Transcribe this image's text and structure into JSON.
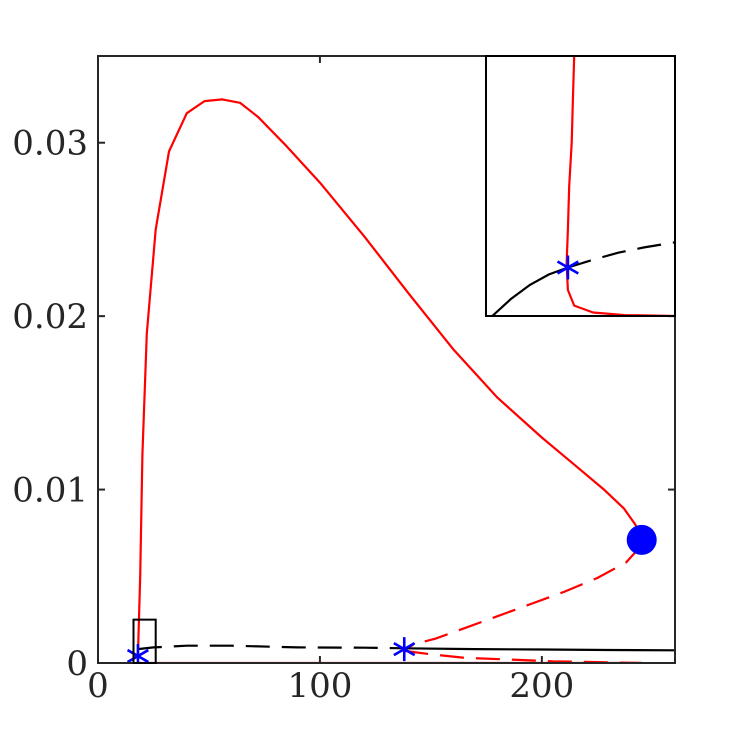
{
  "chart_data": {
    "type": "line",
    "title": "",
    "xlabel": "",
    "ylabel": "",
    "xlim": [
      0,
      260
    ],
    "ylim": [
      0,
      0.035
    ],
    "grid": false,
    "xticks": [
      0,
      100,
      200
    ],
    "xtick_labels": [
      "0",
      "100",
      "200"
    ],
    "yticks": [
      0,
      0.01,
      0.02,
      0.03
    ],
    "ytick_labels": [
      "0",
      "0.01",
      "0.02",
      "0.03"
    ],
    "colors": {
      "red": "#ff0000",
      "black": "#000000",
      "blue": "#0000ff"
    },
    "series": [
      {
        "color": "red",
        "style": "solid",
        "x": [
          18,
          19,
          20,
          22,
          26,
          32,
          40,
          48,
          56,
          64,
          72,
          85,
          100,
          120,
          140,
          160,
          180,
          200,
          215,
          228,
          237,
          242,
          245
        ],
        "y": [
          0.0004,
          0.005,
          0.012,
          0.019,
          0.025,
          0.0295,
          0.0317,
          0.0324,
          0.0325,
          0.0323,
          0.0315,
          0.0298,
          0.0277,
          0.0246,
          0.0213,
          0.0181,
          0.0153,
          0.013,
          0.0114,
          0.01,
          0.0089,
          0.008,
          0.0073
        ]
      },
      {
        "color": "red",
        "style": "dashed",
        "x": [
          245,
          238,
          225,
          210,
          195,
          180,
          165,
          152,
          143,
          138
        ],
        "y": [
          0.0068,
          0.0058,
          0.0049,
          0.0041,
          0.0034,
          0.0027,
          0.002,
          0.0014,
          0.0011,
          0.0008
        ]
      },
      {
        "color": "red",
        "style": "dashed",
        "x": [
          138,
          150,
          165,
          185,
          205,
          225,
          245
        ],
        "y": [
          0.0007,
          0.0005,
          0.0003,
          0.0002,
          0.0001,
          5e-05,
          0.0
        ]
      },
      {
        "color": "red",
        "style": "solid",
        "x": [
          18,
          60,
          120,
          180,
          245
        ],
        "y": [
          0.0,
          0.0,
          0.0,
          0.0,
          0.0
        ]
      },
      {
        "color": "black",
        "style": "dashed",
        "x": [
          18,
          25,
          40,
          60,
          90,
          120,
          138
        ],
        "y": [
          0.0008,
          0.0009,
          0.001,
          0.001,
          0.0009,
          0.00088,
          0.00085
        ]
      },
      {
        "color": "black",
        "style": "solid",
        "x": [
          138,
          170,
          200,
          230,
          260
        ],
        "y": [
          0.00085,
          0.0008,
          0.00078,
          0.00075,
          0.00073
        ]
      }
    ],
    "markers": [
      {
        "type": "asterisk",
        "color": "blue",
        "x": 18,
        "y": 0.0004
      },
      {
        "type": "asterisk",
        "color": "blue",
        "x": 138,
        "y": 0.0008
      },
      {
        "type": "circle",
        "color": "blue",
        "x": 245,
        "y": 0.0071
      }
    ],
    "zoom_box": {
      "xlim": [
        16,
        26
      ],
      "ylim": [
        0,
        0.0025
      ]
    },
    "inset": {
      "xlim": [
        17.5,
        19.0
      ],
      "ylim": [
        0.0,
        0.003
      ],
      "series": [
        {
          "color": "red",
          "style": "solid",
          "x": [
            18.2,
            18.19,
            18.18,
            18.16,
            18.15,
            18.14,
            18.15,
            18.2,
            18.35,
            18.6,
            19.0
          ],
          "y": [
            0.003,
            0.0025,
            0.002,
            0.0015,
            0.001,
            0.0006,
            0.0003,
            0.00012,
            4e-05,
            1e-05,
            0.0
          ]
        },
        {
          "color": "black",
          "style": "solid",
          "x": [
            17.55,
            17.7,
            17.85,
            18.0,
            18.15
          ],
          "y": [
            0.0,
            0.0002,
            0.00036,
            0.00048,
            0.00056
          ]
        },
        {
          "color": "black",
          "style": "dashed",
          "x": [
            18.15,
            18.35,
            18.55,
            18.75,
            19.0
          ],
          "y": [
            0.00056,
            0.00065,
            0.00073,
            0.00079,
            0.00085
          ]
        }
      ],
      "markers": [
        {
          "type": "asterisk",
          "color": "blue",
          "x": 18.15,
          "y": 0.00056
        }
      ]
    }
  }
}
